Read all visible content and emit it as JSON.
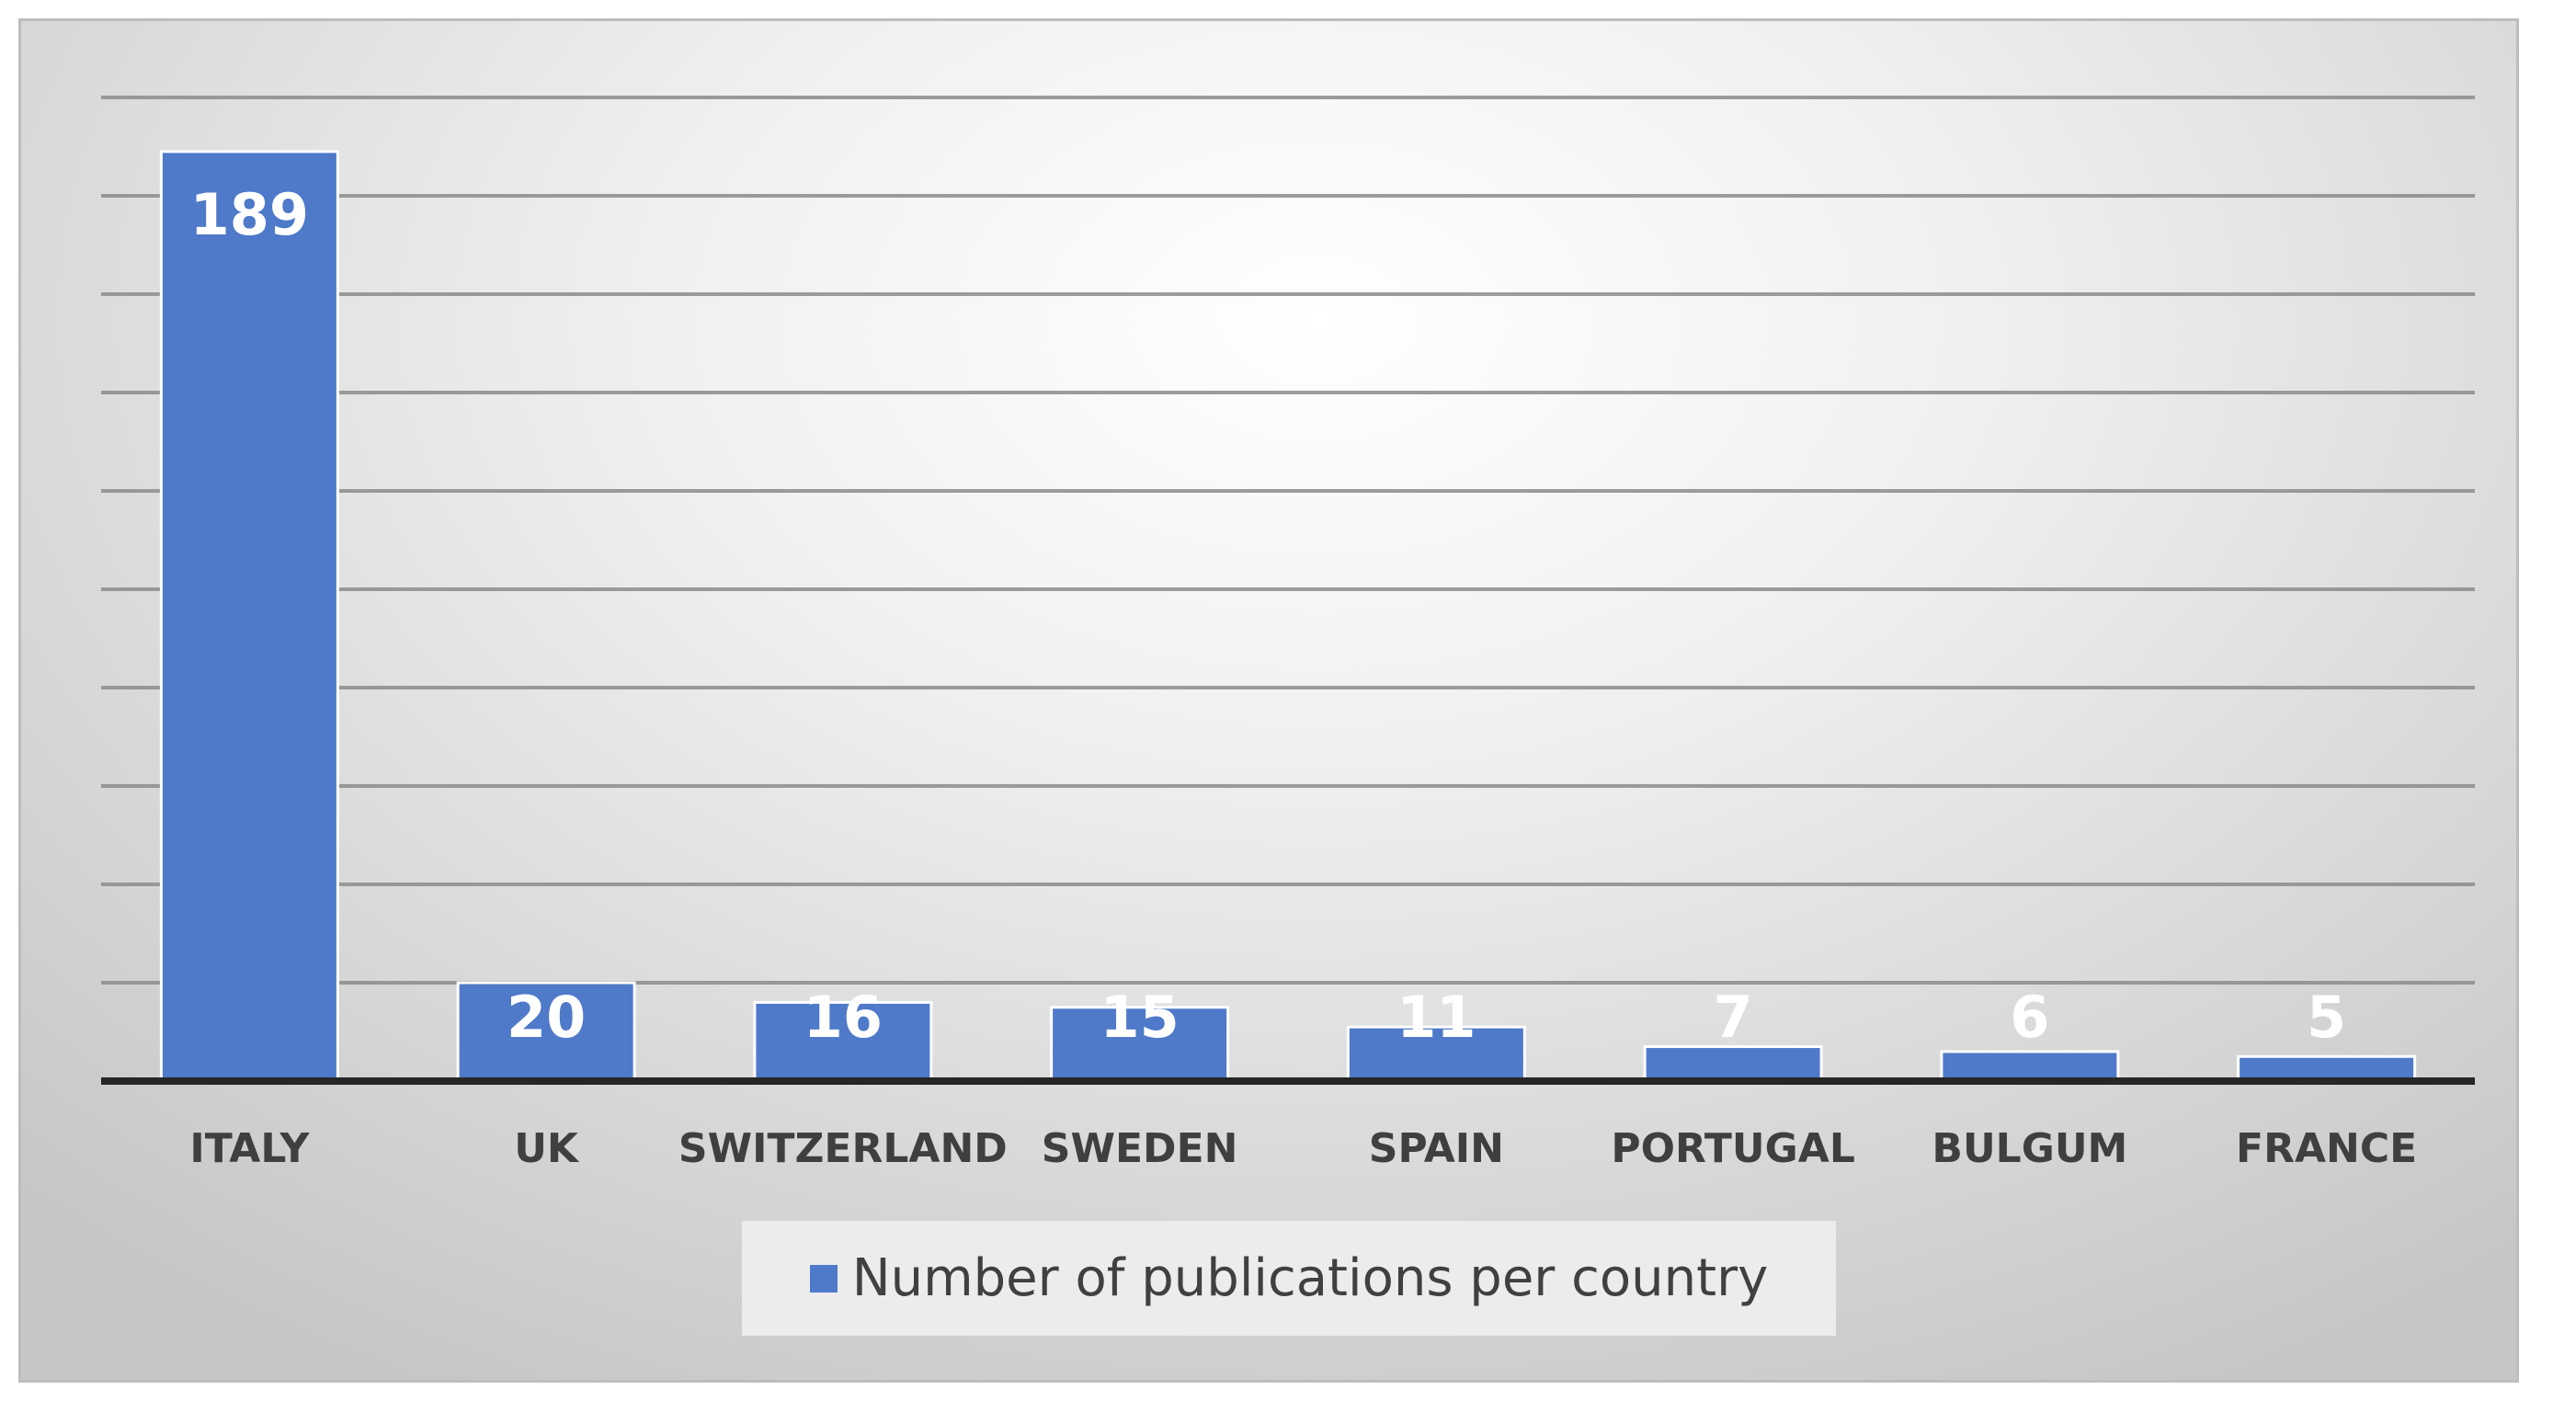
{
  "chart_data": {
    "type": "bar",
    "categories": [
      "ITALY",
      "UK",
      "SWITZERLAND",
      "SWEDEN",
      "SPAIN",
      "PORTUGAL",
      "BULGUM",
      "FRANCE"
    ],
    "series": [
      {
        "name": "Number of publications per country",
        "values": [
          189,
          20,
          16,
          15,
          11,
          7,
          6,
          5
        ],
        "color": "#4f79c9"
      }
    ],
    "ylim": [
      0,
      200
    ],
    "grid": true,
    "legend": "bottom",
    "data_labels": true
  }
}
